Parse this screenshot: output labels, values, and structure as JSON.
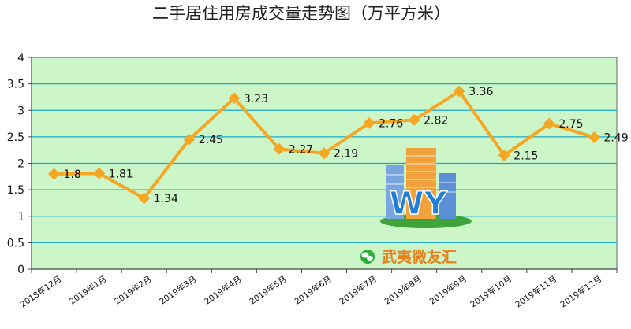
{
  "chart_data": {
    "type": "line",
    "title": "二手居住用房成交量走势图（万平方米）",
    "xlabel": "",
    "ylabel": "",
    "categories": [
      "2018年12月",
      "2019年1月",
      "2019年2月",
      "2019年3月",
      "2019年4月",
      "2019年5月",
      "2019年6月",
      "2019年7月",
      "2019年8月",
      "2019年9月",
      "2019年10月",
      "2019年11月",
      "2019年12月"
    ],
    "series": [
      {
        "values": [
          1.8,
          1.81,
          1.34,
          2.45,
          3.23,
          2.27,
          2.19,
          2.76,
          2.82,
          3.36,
          2.15,
          2.75,
          2.49
        ]
      }
    ],
    "yticks": [
      "0",
      "0.5",
      "1",
      "1.5",
      "2",
      "2.5",
      "3",
      "3.5",
      "4"
    ],
    "ylim": [
      0,
      4
    ],
    "grid": true,
    "legend": "none",
    "colors": {
      "line": "#f5a623",
      "marker": "#f5a623",
      "plot_background": "#ccf5c8",
      "grid": "#1ca9c9"
    }
  },
  "watermark": {
    "logo_letters": "WY",
    "text": "武夷微友汇",
    "icon": "wechat-icon"
  }
}
